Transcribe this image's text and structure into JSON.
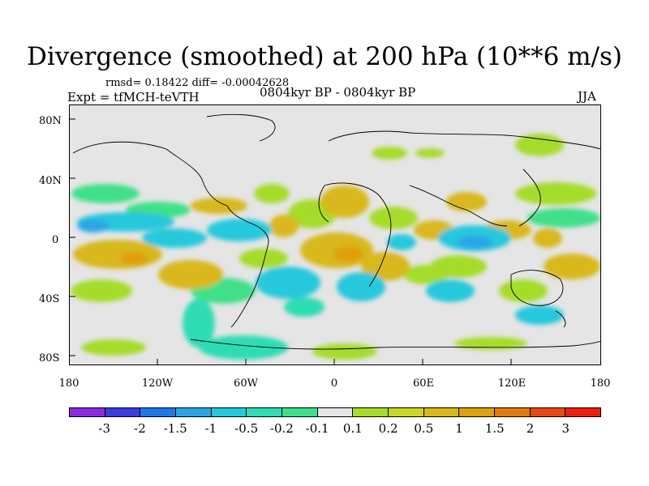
{
  "title": "Divergence (smoothed) at 200 hPa (10**6 m/s)",
  "stats": "rmsd= 0.18422 diff= -0.00042628",
  "experiment": "Expt = tfMCH-teVTH",
  "period": "0804kyr BP - 0804kyr BP",
  "season": "JJA",
  "y_axis": {
    "labels": [
      "80N",
      "40N",
      "0",
      "40S",
      "80S"
    ]
  },
  "x_axis": {
    "labels": [
      "180",
      "120W",
      "60W",
      "0",
      "60E",
      "120E",
      "180"
    ]
  },
  "colorbar": {
    "colors": [
      "#8b2be2",
      "#3a3ee0",
      "#1e78e8",
      "#2aa6e6",
      "#25c8dc",
      "#2fdcb4",
      "#3fe08a",
      "#e5e5e5",
      "#a5dc2a",
      "#c8d821",
      "#d8b81a",
      "#e0a010",
      "#e07a0e",
      "#e84a14",
      "#ee1f10"
    ],
    "labels": [
      "-3",
      "-2",
      "-1.5",
      "-1",
      "-0.5",
      "-0.2",
      "-0.1",
      "0.1",
      "0.2",
      "0.5",
      "1",
      "1.5",
      "2",
      "3"
    ]
  }
}
